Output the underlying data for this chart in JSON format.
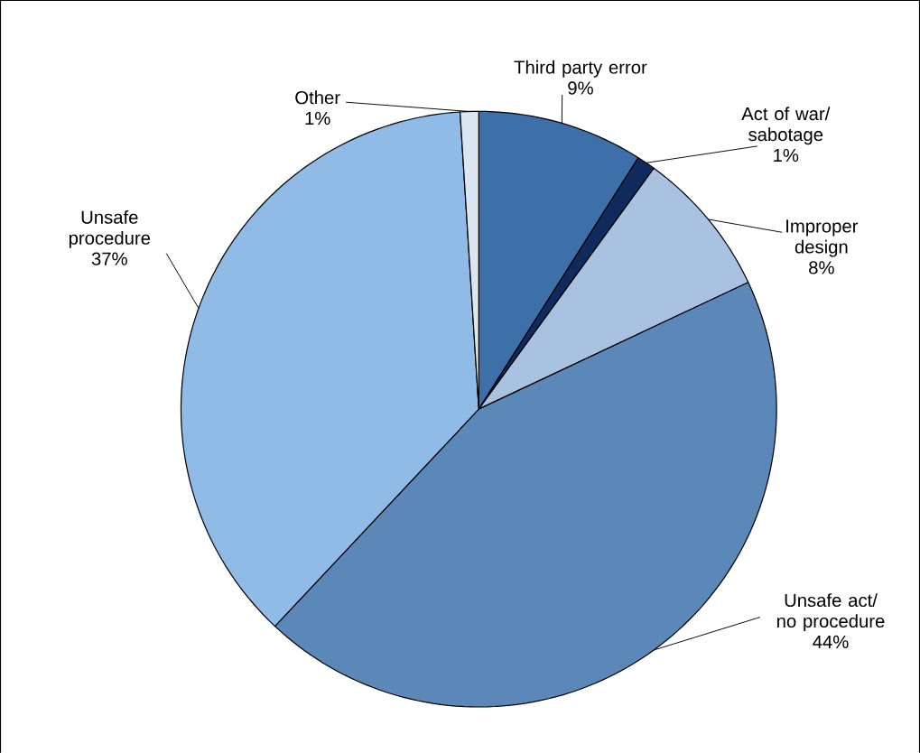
{
  "chart_data": {
    "type": "pie",
    "categories": [
      "Third party error",
      "Act of war/ sabotage",
      "Improper design",
      "Unsafe act/ no procedure",
      "Unsafe procedure",
      "Other"
    ],
    "values": [
      9,
      1,
      8,
      44,
      37,
      1
    ],
    "value_labels": [
      "9%",
      "1%",
      "8%",
      "44%",
      "37%",
      "1%"
    ],
    "colors": [
      "#3d6fa8",
      "#0f2b5e",
      "#a9c2e2",
      "#5b88b8",
      "#8fbbe6",
      "#dce6f2"
    ]
  }
}
